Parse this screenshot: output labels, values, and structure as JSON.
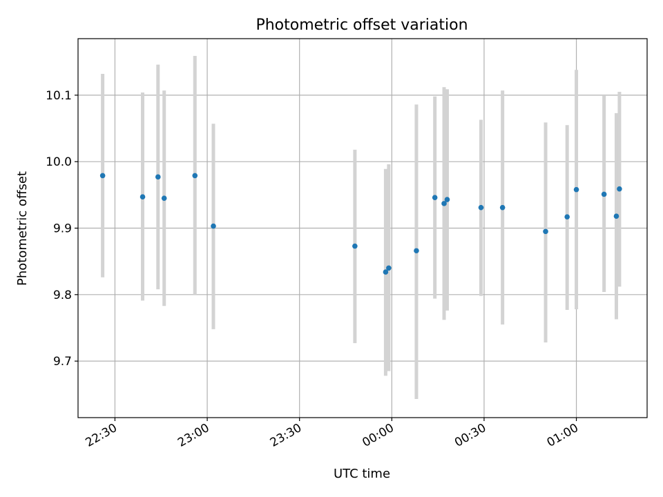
{
  "chart_data": {
    "type": "scatter",
    "title": "Photometric offset variation",
    "xlabel": "UTC time",
    "ylabel": "Photometric offset",
    "x_axis_kind": "time",
    "xlim": [
      "22:18",
      "01:23"
    ],
    "ylim": [
      9.615,
      10.185
    ],
    "x_ticks": [
      "22:30",
      "23:00",
      "23:30",
      "00:00",
      "00:30",
      "01:00"
    ],
    "y_ticks": [
      9.7,
      9.8,
      9.9,
      10.0,
      10.1
    ],
    "grid": true,
    "legend": "none",
    "colors": {
      "marker": "#1f77b4",
      "error_bar": "#d3d3d3",
      "grid": "#b0b0b0"
    },
    "points": [
      {
        "time": "22:26",
        "offset": 9.979,
        "lower": 9.826,
        "upper": 10.132
      },
      {
        "time": "22:39",
        "offset": 9.947,
        "lower": 9.791,
        "upper": 10.104
      },
      {
        "time": "22:44",
        "offset": 9.977,
        "lower": 9.808,
        "upper": 10.146
      },
      {
        "time": "22:46",
        "offset": 9.945,
        "lower": 9.783,
        "upper": 10.107
      },
      {
        "time": "22:56",
        "offset": 9.979,
        "lower": 9.8,
        "upper": 10.159
      },
      {
        "time": "23:02",
        "offset": 9.903,
        "lower": 9.748,
        "upper": 10.057
      },
      {
        "time": "23:48",
        "offset": 9.873,
        "lower": 9.727,
        "upper": 10.018
      },
      {
        "time": "23:58",
        "offset": 9.834,
        "lower": 9.678,
        "upper": 9.989
      },
      {
        "time": "23:59",
        "offset": 9.84,
        "lower": 9.685,
        "upper": 9.996
      },
      {
        "time": "00:08",
        "offset": 9.866,
        "lower": 9.643,
        "upper": 10.086
      },
      {
        "time": "00:14",
        "offset": 9.946,
        "lower": 9.794,
        "upper": 10.098
      },
      {
        "time": "00:17",
        "offset": 9.937,
        "lower": 9.762,
        "upper": 10.112
      },
      {
        "time": "00:18",
        "offset": 9.943,
        "lower": 9.776,
        "upper": 10.109
      },
      {
        "time": "00:29",
        "offset": 9.931,
        "lower": 9.798,
        "upper": 10.063
      },
      {
        "time": "00:36",
        "offset": 9.931,
        "lower": 9.755,
        "upper": 10.107
      },
      {
        "time": "00:50",
        "offset": 9.895,
        "lower": 9.728,
        "upper": 10.059
      },
      {
        "time": "00:57",
        "offset": 9.917,
        "lower": 9.777,
        "upper": 10.055
      },
      {
        "time": "01:00",
        "offset": 9.958,
        "lower": 9.778,
        "upper": 10.138
      },
      {
        "time": "01:09",
        "offset": 9.951,
        "lower": 9.804,
        "upper": 10.099
      },
      {
        "time": "01:13",
        "offset": 9.918,
        "lower": 9.763,
        "upper": 10.073
      },
      {
        "time": "01:14",
        "offset": 9.959,
        "lower": 9.812,
        "upper": 10.105
      }
    ]
  }
}
